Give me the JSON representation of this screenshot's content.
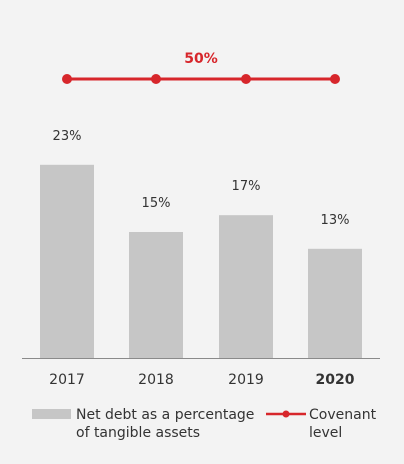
{
  "colors": {
    "bar": "#c6c6c6",
    "covenant": "#d7262b",
    "axis": "#8a8a8a",
    "text": "#333333",
    "background": "#f3f3f3"
  },
  "chart_data": {
    "type": "bar",
    "categories": [
      "2017",
      "2018",
      "2019",
      "2020"
    ],
    "highlighted_category": "2020",
    "series": [
      {
        "name": "Net debt as a percentage of tangible assets",
        "legend_lines": [
          "Net debt as a percentage",
          "of tangible assets"
        ],
        "values": [
          23,
          15,
          17,
          13
        ],
        "labels": [
          "23%",
          "15%",
          "17%",
          "13%"
        ]
      }
    ],
    "covenant": {
      "name": "Covenant level",
      "legend_lines": [
        "Covenant",
        "level"
      ],
      "value": 50,
      "label": "50%"
    },
    "legend_position": "bottom"
  }
}
